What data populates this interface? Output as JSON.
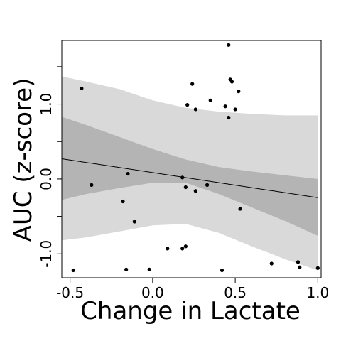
{
  "chart_data": {
    "type": "scatter",
    "title": "",
    "xlabel": "Change in Lactate",
    "ylabel": "AUC (z-score)",
    "xlim": [
      -0.55,
      1.02
    ],
    "ylim": [
      -1.32,
      1.85
    ],
    "xticks": [
      -0.5,
      0.0,
      0.5,
      1.0
    ],
    "xtick_labels": [
      "-0.5",
      "0.0",
      "0.5",
      "1.0"
    ],
    "yticks": [
      -1.0,
      -0.5,
      0.0,
      0.5,
      1.0,
      1.5
    ],
    "ytick_labels": [
      "-1.0",
      "",
      "0.0",
      "",
      "1.0",
      ""
    ],
    "grid": false,
    "regression_line": {
      "x": [
        -0.55,
        1.0
      ],
      "y": [
        0.27,
        -0.25
      ]
    },
    "bands": {
      "x": [
        -0.55,
        -0.4,
        -0.2,
        0.0,
        0.2,
        0.4,
        0.6,
        0.8,
        1.0
      ],
      "inner_upper": [
        0.83,
        0.72,
        0.56,
        0.4,
        0.26,
        0.16,
        0.1,
        0.05,
        0.0
      ],
      "inner_lower": [
        -0.28,
        -0.2,
        -0.12,
        -0.05,
        -0.05,
        -0.2,
        -0.38,
        -0.56,
        -0.76
      ],
      "outer_upper": [
        1.37,
        1.3,
        1.2,
        1.05,
        0.95,
        0.9,
        0.87,
        0.85,
        0.85
      ],
      "outer_lower": [
        -0.82,
        -0.78,
        -0.7,
        -0.62,
        -0.6,
        -0.72,
        -0.9,
        -1.07,
        -1.22
      ]
    },
    "colors": {
      "inner_band": "#b4b4b4",
      "outer_band": "#d9d9d9",
      "line": "#000000",
      "points": "#000000"
    },
    "points": [
      {
        "x": -0.48,
        "y": -1.22
      },
      {
        "x": -0.43,
        "y": 1.21
      },
      {
        "x": -0.37,
        "y": -0.08
      },
      {
        "x": -0.18,
        "y": -0.3
      },
      {
        "x": -0.16,
        "y": -1.21
      },
      {
        "x": -0.15,
        "y": 0.07
      },
      {
        "x": -0.11,
        "y": -0.57
      },
      {
        "x": -0.02,
        "y": -1.21
      },
      {
        "x": 0.09,
        "y": -0.93
      },
      {
        "x": 0.18,
        "y": 0.02
      },
      {
        "x": 0.18,
        "y": -0.93
      },
      {
        "x": 0.2,
        "y": -0.11
      },
      {
        "x": 0.2,
        "y": -0.9
      },
      {
        "x": 0.21,
        "y": 0.99
      },
      {
        "x": 0.24,
        "y": 1.27
      },
      {
        "x": 0.26,
        "y": 0.93
      },
      {
        "x": 0.26,
        "y": -0.16
      },
      {
        "x": 0.33,
        "y": -0.08
      },
      {
        "x": 0.35,
        "y": 1.05
      },
      {
        "x": 0.42,
        "y": -1.22
      },
      {
        "x": 0.44,
        "y": 0.97
      },
      {
        "x": 0.46,
        "y": 0.82
      },
      {
        "x": 0.46,
        "y": 1.79
      },
      {
        "x": 0.47,
        "y": 1.33
      },
      {
        "x": 0.48,
        "y": 1.3
      },
      {
        "x": 0.5,
        "y": 0.93
      },
      {
        "x": 0.52,
        "y": 1.17
      },
      {
        "x": 0.53,
        "y": -0.4
      },
      {
        "x": 0.72,
        "y": -1.13
      },
      {
        "x": 0.88,
        "y": -1.11
      },
      {
        "x": 0.89,
        "y": -1.18
      },
      {
        "x": 1.0,
        "y": -1.19
      }
    ]
  }
}
